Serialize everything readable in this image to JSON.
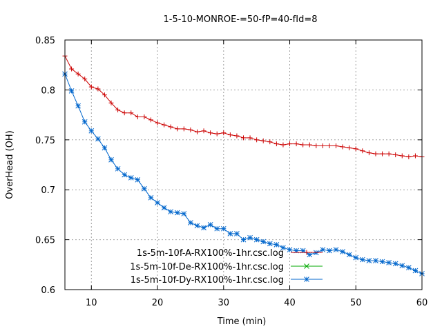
{
  "chart_data": {
    "type": "line",
    "title": "1-5-10-MONROE-=50-fP=40-fId=8",
    "xlabel": "Time (min)",
    "ylabel": "OverHead (OH)",
    "xlim": [
      6,
      60
    ],
    "ylim": [
      0.6,
      0.85
    ],
    "xticks": [
      10,
      20,
      30,
      40,
      50,
      60
    ],
    "yticks": [
      0.6,
      0.65,
      0.7,
      0.75,
      0.8,
      0.85
    ],
    "ytick_labels": [
      "0.6",
      "0.65",
      "0.7",
      "0.75",
      "0.8",
      "0.85"
    ],
    "grid": true,
    "legend_position": "bottom-left",
    "series": [
      {
        "name": "1s-5m-10f-A-RX100%-1hr.csc.log",
        "color": "#cc0000",
        "marker": "plus",
        "x": [
          6,
          7,
          8,
          9,
          10,
          11,
          12,
          13,
          14,
          15,
          16,
          17,
          18,
          19,
          20,
          21,
          22,
          23,
          24,
          25,
          26,
          27,
          28,
          29,
          30,
          31,
          32,
          33,
          34,
          35,
          36,
          37,
          38,
          39,
          40,
          41,
          42,
          43,
          44,
          45,
          46,
          47,
          48,
          49,
          50,
          51,
          52,
          53,
          54,
          55,
          56,
          57,
          58,
          59,
          60
        ],
        "y": [
          0.834,
          0.821,
          0.816,
          0.811,
          0.803,
          0.801,
          0.795,
          0.787,
          0.78,
          0.777,
          0.777,
          0.773,
          0.773,
          0.77,
          0.767,
          0.765,
          0.763,
          0.761,
          0.761,
          0.76,
          0.758,
          0.759,
          0.757,
          0.756,
          0.757,
          0.755,
          0.754,
          0.752,
          0.752,
          0.75,
          0.749,
          0.748,
          0.746,
          0.745,
          0.746,
          0.746,
          0.745,
          0.745,
          0.744,
          0.744,
          0.744,
          0.744,
          0.743,
          0.742,
          0.741,
          0.739,
          0.737,
          0.736,
          0.736,
          0.736,
          0.735,
          0.734,
          0.733,
          0.734,
          0.733
        ]
      },
      {
        "name": "1s-5m-10f-De-RX100%-1hr.csc.log",
        "color": "#00aa00",
        "marker": "cross",
        "x": [],
        "y": []
      },
      {
        "name": "1s-5m-10f-Dy-RX100%-1hr.csc.log",
        "color": "#0066cc",
        "marker": "star",
        "x": [
          6,
          7,
          8,
          9,
          10,
          11,
          12,
          13,
          14,
          15,
          16,
          17,
          18,
          19,
          20,
          21,
          22,
          23,
          24,
          25,
          26,
          27,
          28,
          29,
          30,
          31,
          32,
          33,
          34,
          35,
          36,
          37,
          38,
          39,
          40,
          41,
          42,
          43,
          44,
          45,
          46,
          47,
          48,
          49,
          50,
          51,
          52,
          53,
          54,
          55,
          56,
          57,
          58,
          59,
          60
        ],
        "y": [
          0.816,
          0.799,
          0.784,
          0.768,
          0.759,
          0.751,
          0.742,
          0.73,
          0.721,
          0.715,
          0.712,
          0.71,
          0.701,
          0.692,
          0.687,
          0.682,
          0.678,
          0.677,
          0.676,
          0.667,
          0.664,
          0.662,
          0.665,
          0.661,
          0.661,
          0.656,
          0.656,
          0.65,
          0.652,
          0.65,
          0.648,
          0.646,
          0.645,
          0.642,
          0.64,
          0.639,
          0.639,
          0.635,
          0.637,
          0.64,
          0.639,
          0.64,
          0.638,
          0.635,
          0.632,
          0.63,
          0.629,
          0.629,
          0.628,
          0.627,
          0.626,
          0.624,
          0.622,
          0.619,
          0.616
        ]
      }
    ]
  }
}
